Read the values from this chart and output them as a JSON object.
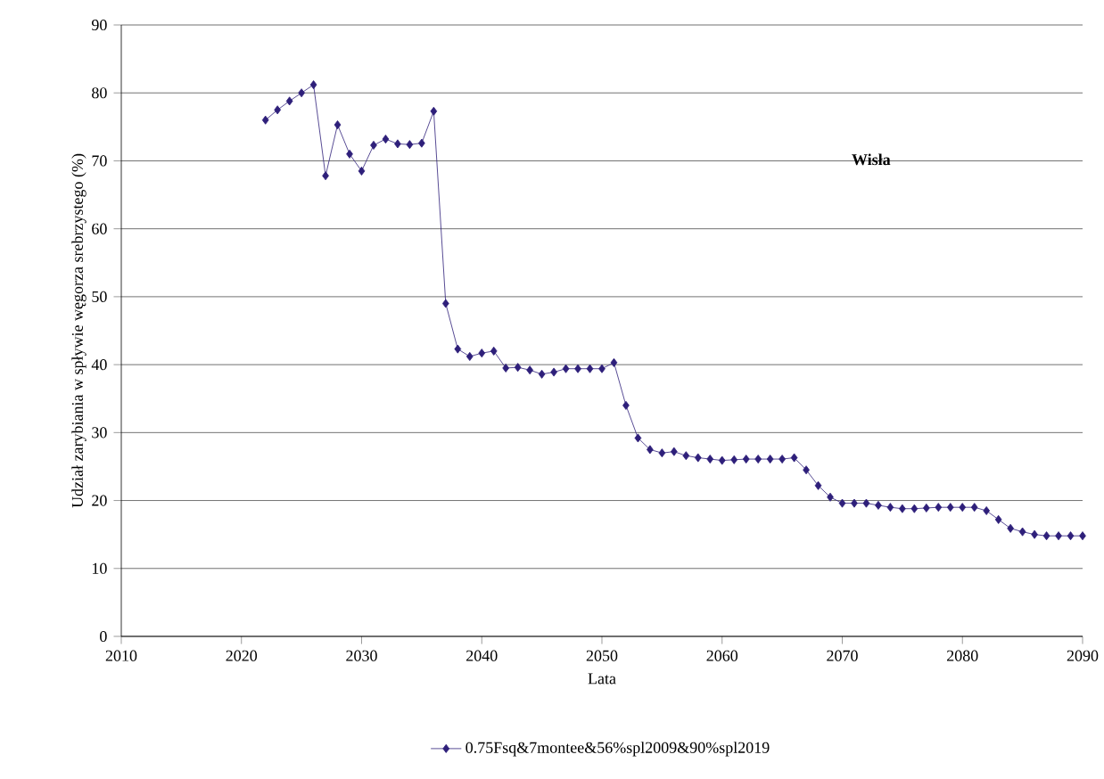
{
  "chart_data": {
    "type": "line",
    "xlabel": "Lata",
    "ylabel": "Udział zarybiania w spływie węgorza srebrzystego (%)",
    "annotations": [
      "Wisła"
    ],
    "x": [
      2022,
      2023,
      2024,
      2025,
      2026,
      2027,
      2028,
      2029,
      2030,
      2031,
      2032,
      2033,
      2034,
      2035,
      2036,
      2037,
      2038,
      2039,
      2040,
      2041,
      2042,
      2043,
      2044,
      2045,
      2046,
      2047,
      2048,
      2049,
      2050,
      2051,
      2052,
      2053,
      2054,
      2055,
      2056,
      2057,
      2058,
      2059,
      2060,
      2061,
      2062,
      2063,
      2064,
      2065,
      2066,
      2067,
      2068,
      2069,
      2070,
      2071,
      2072,
      2073,
      2074,
      2075,
      2076,
      2077,
      2078,
      2079,
      2080,
      2081,
      2082,
      2083,
      2084,
      2085,
      2086,
      2087,
      2088,
      2089,
      2090
    ],
    "series": [
      {
        "name": "0.75Fsq&7montee&56%spl2009&90%spl2019",
        "color": "#2e1f7a",
        "values": [
          76,
          77.5,
          78.8,
          80,
          81.2,
          67.8,
          75.3,
          71,
          68.5,
          72.3,
          73.2,
          72.5,
          72.4,
          72.6,
          77.3,
          49,
          42.3,
          41.2,
          41.7,
          42,
          39.5,
          39.6,
          39.2,
          38.6,
          38.9,
          39.4,
          39.4,
          39.4,
          39.4,
          40.3,
          34,
          29.2,
          27.5,
          27,
          27.2,
          26.6,
          26.3,
          26.1,
          25.9,
          26,
          26.1,
          26.1,
          26.1,
          26.1,
          26.3,
          24.5,
          22.2,
          20.5,
          19.6,
          19.6,
          19.6,
          19.3,
          19,
          18.8,
          18.8,
          18.9,
          19,
          19,
          19,
          19,
          18.5,
          17.2,
          15.9,
          15.4,
          15,
          14.8,
          14.8,
          14.8,
          14.8
        ]
      }
    ],
    "xlim": [
      2010,
      2090
    ],
    "xticks": [
      2010,
      2020,
      2030,
      2040,
      2050,
      2060,
      2070,
      2080,
      2090
    ],
    "ylim": [
      0,
      90
    ],
    "yticks": [
      0,
      10,
      20,
      30,
      40,
      50,
      60,
      70,
      80,
      90
    ],
    "grid": "y",
    "legend": "bottom",
    "marker": "diamond",
    "line_style": "solid"
  }
}
